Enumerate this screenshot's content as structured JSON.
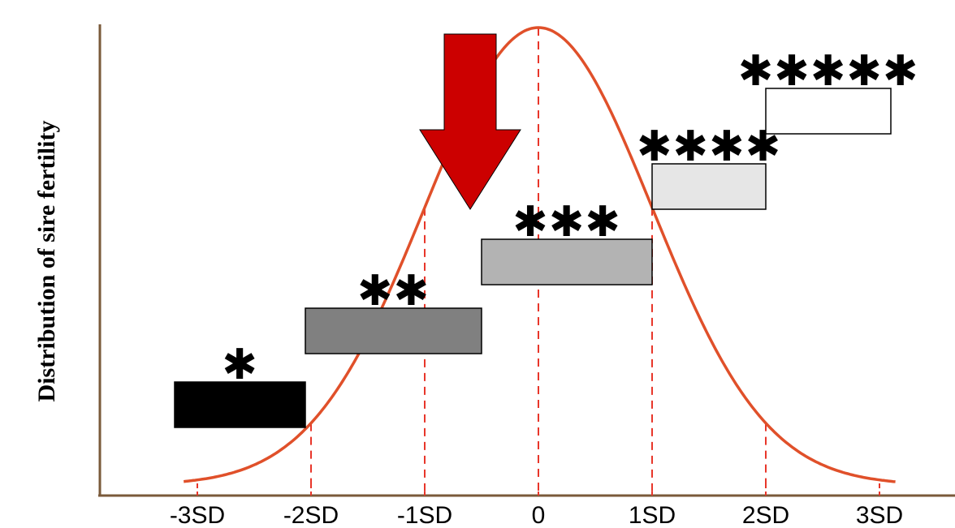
{
  "y_axis_label": "Distribution of sire fertility",
  "x_ticks": [
    {
      "label": "-3SD",
      "value": -3
    },
    {
      "label": "-2SD",
      "value": -2
    },
    {
      "label": "-1SD",
      "value": -1
    },
    {
      "label": "0",
      "value": 0
    },
    {
      "label": "1SD",
      "value": 1
    },
    {
      "label": "2SD",
      "value": 2
    },
    {
      "label": "3SD",
      "value": 3
    }
  ],
  "fertility_classes": [
    {
      "stars": "✱",
      "from_sd": -3.2,
      "to_sd": -2.05,
      "color": "#000000"
    },
    {
      "stars": "✱✱",
      "from_sd": -2.05,
      "to_sd": -0.5,
      "color": "#808080"
    },
    {
      "stars": "✱✱✱",
      "from_sd": -0.5,
      "to_sd": 1.0,
      "color": "#b3b3b3"
    },
    {
      "stars": "✱✱✱✱",
      "from_sd": 1.0,
      "to_sd": 2.0,
      "color": "#e6e6e6"
    },
    {
      "stars": "✱✱✱✱✱",
      "from_sd": 2.0,
      "to_sd": 3.1,
      "color": "#ffffff"
    }
  ],
  "curve_color": "#e0502a",
  "arrow_color": "#cc0000",
  "arrow_points_at_sd": -0.6
}
